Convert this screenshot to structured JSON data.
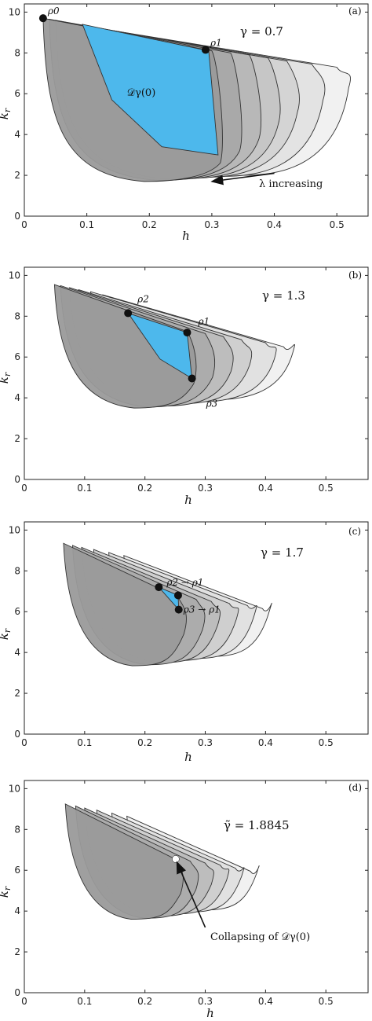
{
  "colors": {
    "blue_region": "#4db8ec",
    "shell_dark": "#9a9a9a",
    "shell_light": "#f0f0f0",
    "stroke": "#333333",
    "point": "#111111",
    "collapse_point": "#ffffff"
  },
  "chart_data": [
    {
      "type": "area",
      "panel": "(a)",
      "gamma_text": "γ = 0.7",
      "xlabel": "h",
      "ylabel": "k_r",
      "xlim": [
        0,
        0.55
      ],
      "ylim": [
        0,
        10.4
      ],
      "xticks": [
        "0",
        "0.1",
        "0.2",
        "0.3",
        "0.4",
        "0.5"
      ],
      "yticks": [
        "0",
        "2",
        "4",
        "6",
        "8",
        "10"
      ],
      "region_label": "𝒟γ(0)",
      "annotation": "λ increasing",
      "arrow_from": [
        0.4,
        2.1
      ],
      "arrow_to": [
        0.3,
        1.7
      ],
      "shells": [
        {
          "left": [
            0.03,
            9.7
          ],
          "right": [
            0.3,
            8.1
          ],
          "bottom_k": 1.7,
          "right_k_low": 2.6
        },
        {
          "left": [
            0.04,
            9.65
          ],
          "right": [
            0.33,
            8.0
          ],
          "bottom_k": 1.75,
          "right_k_low": 3.2
        },
        {
          "left": [
            0.05,
            9.6
          ],
          "right": [
            0.36,
            7.9
          ],
          "bottom_k": 1.8,
          "right_k_low": 3.8
        },
        {
          "left": [
            0.065,
            9.5
          ],
          "right": [
            0.39,
            7.75
          ],
          "bottom_k": 1.85,
          "right_k_low": 4.5
        },
        {
          "left": [
            0.08,
            9.4
          ],
          "right": [
            0.42,
            7.6
          ],
          "bottom_k": 1.9,
          "right_k_low": 5.1
        },
        {
          "left": [
            0.1,
            9.3
          ],
          "right": [
            0.46,
            7.45
          ],
          "bottom_k": 1.95,
          "right_k_low": 5.7
        },
        {
          "left": [
            0.12,
            9.2
          ],
          "right": [
            0.5,
            7.3
          ],
          "bottom_k": 2.0,
          "right_k_low": 6.3
        }
      ],
      "blue_region": [
        [
          0.093,
          9.4
        ],
        [
          0.295,
          8.1
        ],
        [
          0.31,
          3.0
        ],
        [
          0.22,
          3.4
        ],
        [
          0.14,
          5.7
        ],
        [
          0.093,
          9.4
        ]
      ],
      "points": [
        {
          "label": "ρ0",
          "h": 0.03,
          "k": 9.7
        },
        {
          "label": "ρ1",
          "h": 0.29,
          "k": 8.15
        }
      ]
    },
    {
      "type": "area",
      "panel": "(b)",
      "gamma_text": "γ = 1.3",
      "xlabel": "h",
      "ylabel": "k_r",
      "xlim": [
        0,
        0.57
      ],
      "ylim": [
        0,
        10.4
      ],
      "xticks": [
        "0",
        "0.1",
        "0.2",
        "0.3",
        "0.4",
        "0.5"
      ],
      "yticks": [
        "0",
        "2",
        "4",
        "6",
        "8",
        "10"
      ],
      "shells": [
        {
          "left": [
            0.05,
            9.55
          ],
          "right": [
            0.27,
            7.25
          ],
          "bottom_k": 3.5,
          "right_k_low": 4.7
        },
        {
          "left": [
            0.06,
            9.5
          ],
          "right": [
            0.3,
            7.15
          ],
          "bottom_k": 3.55,
          "right_k_low": 5.0
        },
        {
          "left": [
            0.075,
            9.4
          ],
          "right": [
            0.33,
            7.0
          ],
          "bottom_k": 3.6,
          "right_k_low": 5.3
        },
        {
          "left": [
            0.09,
            9.3
          ],
          "right": [
            0.36,
            6.85
          ],
          "bottom_k": 3.7,
          "right_k_low": 5.6
        },
        {
          "left": [
            0.11,
            9.2
          ],
          "right": [
            0.4,
            6.7
          ],
          "bottom_k": 3.8,
          "right_k_low": 5.9
        },
        {
          "left": [
            0.13,
            9.05
          ],
          "right": [
            0.43,
            6.5
          ],
          "bottom_k": 3.9,
          "right_k_low": 6.2
        }
      ],
      "blue_region": [
        [
          0.172,
          8.15
        ],
        [
          0.27,
          7.2
        ],
        [
          0.278,
          4.95
        ],
        [
          0.225,
          5.9
        ],
        [
          0.172,
          8.15
        ]
      ],
      "points": [
        {
          "label": "ρ2",
          "h": 0.172,
          "k": 8.15
        },
        {
          "label": "ρ1",
          "h": 0.27,
          "k": 7.2
        },
        {
          "label": "ρ3",
          "h": 0.278,
          "k": 4.95
        }
      ]
    },
    {
      "type": "area",
      "panel": "(c)",
      "gamma_text": "γ = 1.7",
      "xlabel": "h",
      "ylabel": "k_r",
      "xlim": [
        0,
        0.57
      ],
      "ylim": [
        0,
        10.4
      ],
      "xticks": [
        "0",
        "0.1",
        "0.2",
        "0.3",
        "0.4",
        "0.5"
      ],
      "yticks": [
        "0",
        "2",
        "4",
        "6",
        "8",
        "10"
      ],
      "shells": [
        {
          "left": [
            0.065,
            9.35
          ],
          "right": [
            0.255,
            6.7
          ],
          "bottom_k": 3.35,
          "right_k_low": 4.9
        },
        {
          "left": [
            0.08,
            9.25
          ],
          "right": [
            0.285,
            6.6
          ],
          "bottom_k": 3.4,
          "right_k_low": 5.1
        },
        {
          "left": [
            0.095,
            9.15
          ],
          "right": [
            0.31,
            6.5
          ],
          "bottom_k": 3.5,
          "right_k_low": 5.35
        },
        {
          "left": [
            0.115,
            9.05
          ],
          "right": [
            0.34,
            6.4
          ],
          "bottom_k": 3.6,
          "right_k_low": 5.6
        },
        {
          "left": [
            0.14,
            8.9
          ],
          "right": [
            0.37,
            6.3
          ],
          "bottom_k": 3.7,
          "right_k_low": 5.85
        },
        {
          "left": [
            0.165,
            8.75
          ],
          "right": [
            0.395,
            6.15
          ],
          "bottom_k": 3.8,
          "right_k_low": 6.05
        }
      ],
      "blue_region": [
        [
          0.223,
          7.2
        ],
        [
          0.255,
          6.8
        ],
        [
          0.256,
          6.1
        ],
        [
          0.223,
          7.2
        ]
      ],
      "points": [
        {
          "label": "ρ2 → ρ1",
          "h": 0.223,
          "k": 7.2
        },
        {
          "label": "",
          "h": 0.255,
          "k": 6.8
        },
        {
          "label": "ρ3 → ρ1",
          "h": 0.256,
          "k": 6.1
        }
      ]
    },
    {
      "type": "area",
      "panel": "(d)",
      "gamma_text": "γ̃ = 1.8845",
      "xlabel": "h",
      "ylabel": "k_r",
      "xlim": [
        0,
        0.57
      ],
      "ylim": [
        0,
        10.4
      ],
      "xticks": [
        "0",
        "0.1",
        "0.2",
        "0.3",
        "0.4",
        "0.5"
      ],
      "yticks": [
        "0",
        "2",
        "4",
        "6",
        "8",
        "10"
      ],
      "annotation": "Collapsing of 𝒟γ(0)",
      "arrow_from": [
        0.3,
        3.2
      ],
      "arrow_to": [
        0.253,
        6.4
      ],
      "shells": [
        {
          "left": [
            0.068,
            9.25
          ],
          "right": [
            0.25,
            6.55
          ],
          "bottom_k": 3.6,
          "right_k_low": 4.85
        },
        {
          "left": [
            0.085,
            9.15
          ],
          "right": [
            0.275,
            6.45
          ],
          "bottom_k": 3.65,
          "right_k_low": 5.05
        },
        {
          "left": [
            0.1,
            9.05
          ],
          "right": [
            0.3,
            6.35
          ],
          "bottom_k": 3.75,
          "right_k_low": 5.3
        },
        {
          "left": [
            0.12,
            8.95
          ],
          "right": [
            0.325,
            6.25
          ],
          "bottom_k": 3.85,
          "right_k_low": 5.5
        },
        {
          "left": [
            0.145,
            8.8
          ],
          "right": [
            0.35,
            6.1
          ],
          "bottom_k": 3.95,
          "right_k_low": 5.7
        },
        {
          "left": [
            0.17,
            8.65
          ],
          "right": [
            0.375,
            5.95
          ],
          "bottom_k": 4.05,
          "right_k_low": 5.85
        }
      ],
      "blue_region": [],
      "points": [
        {
          "label": "",
          "h": 0.251,
          "k": 6.55,
          "hollow": true
        }
      ]
    }
  ]
}
